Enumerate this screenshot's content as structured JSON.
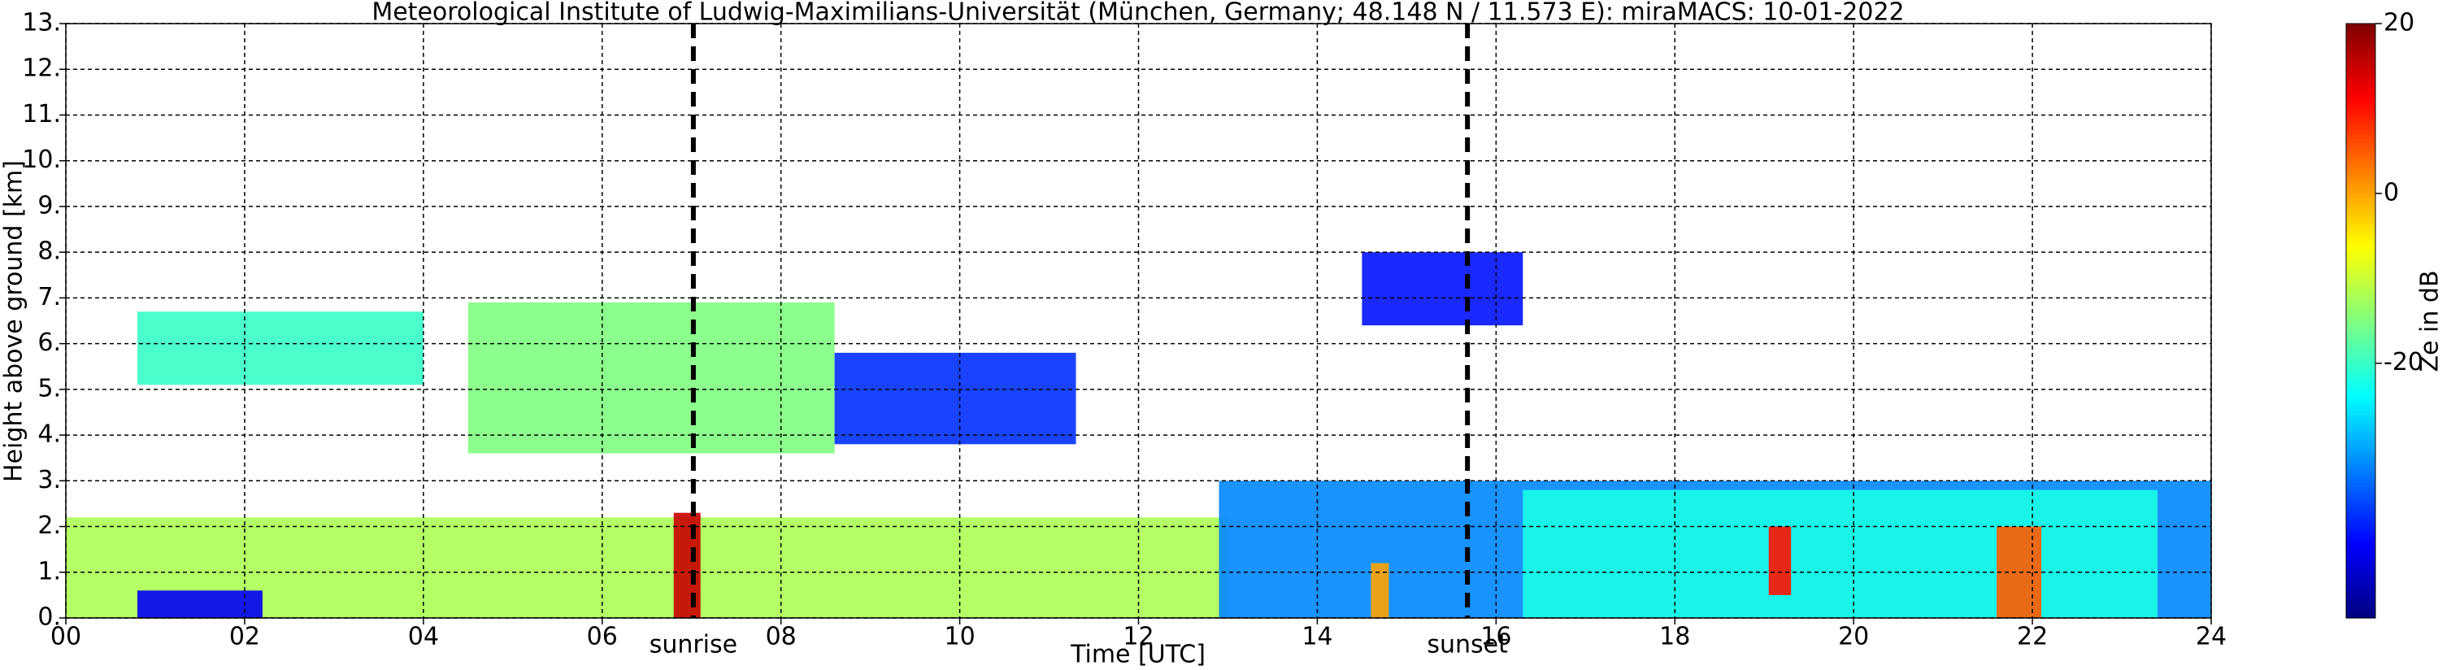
{
  "chart_data": {
    "type": "heatmap",
    "title": "Meteorological Institute of Ludwig-Maximilians-Universität (München, Germany; 48.148 N / 11.573 E):    miraMACS: 10-01-2022",
    "x_label": "Time [UTC]",
    "y_label": "Height above ground [km]",
    "colorbar_label": "Ze in dB",
    "colormap": "jet",
    "xlim": [
      0,
      24
    ],
    "ylim": [
      0,
      13
    ],
    "clim": [
      -50,
      20
    ],
    "grid": true,
    "xticks": [
      {
        "value": 0,
        "label": "00"
      },
      {
        "value": 2,
        "label": "02"
      },
      {
        "value": 4,
        "label": "04"
      },
      {
        "value": 6,
        "label": "06"
      },
      {
        "value": 8,
        "label": "08"
      },
      {
        "value": 10,
        "label": "10"
      },
      {
        "value": 12,
        "label": "12"
      },
      {
        "value": 14,
        "label": "14"
      },
      {
        "value": 16,
        "label": "16"
      },
      {
        "value": 18,
        "label": "18"
      },
      {
        "value": 20,
        "label": "20"
      },
      {
        "value": 22,
        "label": "22"
      },
      {
        "value": 24,
        "label": "24"
      }
    ],
    "yticks": [
      {
        "value": 0,
        "label": "0."
      },
      {
        "value": 1,
        "label": "1."
      },
      {
        "value": 2,
        "label": "2."
      },
      {
        "value": 3,
        "label": "3."
      },
      {
        "value": 4,
        "label": "4."
      },
      {
        "value": 5,
        "label": "5."
      },
      {
        "value": 6,
        "label": "6."
      },
      {
        "value": 7,
        "label": "7."
      },
      {
        "value": 8,
        "label": "8."
      },
      {
        "value": 9,
        "label": "9."
      },
      {
        "value": 10,
        "label": "10."
      },
      {
        "value": 11,
        "label": "11."
      },
      {
        "value": 12,
        "label": "12."
      },
      {
        "value": 13,
        "label": "13."
      }
    ],
    "cticks": [
      -20,
      0,
      20
    ],
    "annotations": [
      {
        "x": 7.02,
        "label": "sunrise"
      },
      {
        "x": 15.68,
        "label": "sunset"
      }
    ],
    "echoes": [
      {
        "x": [
          0,
          13
        ],
        "y": [
          0,
          2.2
        ],
        "value": -12
      },
      {
        "x": [
          0.8,
          2.2
        ],
        "y": [
          0,
          0.6
        ],
        "value": -42
      },
      {
        "x": [
          6.8,
          7.1
        ],
        "y": [
          0,
          2.3
        ],
        "value": 15
      },
      {
        "x": [
          0.8,
          4
        ],
        "y": [
          5.1,
          6.7
        ],
        "value": -20
      },
      {
        "x": [
          4.5,
          8.6
        ],
        "y": [
          3.6,
          6.9
        ],
        "value": -15
      },
      {
        "x": [
          8.6,
          11.3
        ],
        "y": [
          3.8,
          5.8
        ],
        "value": -38
      },
      {
        "x": [
          12.9,
          24
        ],
        "y": [
          0,
          3
        ],
        "value": -32
      },
      {
        "x": [
          16.3,
          23.4
        ],
        "y": [
          0,
          2.8
        ],
        "value": -22
      },
      {
        "x": [
          14.5,
          16.3
        ],
        "y": [
          6.4,
          8
        ],
        "value": -40
      },
      {
        "x": [
          19.05,
          19.3
        ],
        "y": [
          0.5,
          2
        ],
        "value": 10
      },
      {
        "x": [
          21.6,
          22.1
        ],
        "y": [
          0,
          2
        ],
        "value": 5
      },
      {
        "x": [
          14.6,
          14.8
        ],
        "y": [
          0,
          1.2
        ],
        "value": 0
      }
    ]
  }
}
